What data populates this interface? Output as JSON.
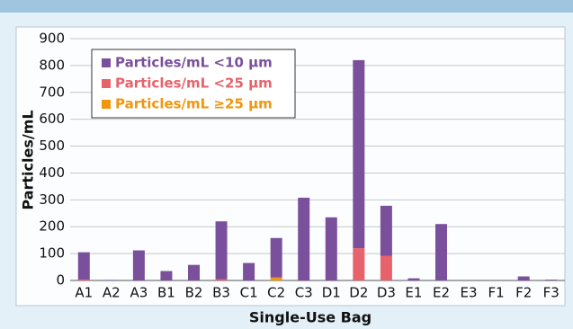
{
  "chart_data": {
    "type": "stacked-bar",
    "xlabel": "Single-Use Bag",
    "ylabel": "Particles/mL",
    "categories": [
      "A1",
      "A2",
      "A3",
      "B1",
      "B2",
      "B3",
      "C1",
      "C2",
      "C3",
      "D1",
      "D2",
      "D3",
      "E1",
      "E2",
      "E3",
      "F1",
      "F2",
      "F3"
    ],
    "series": [
      {
        "name": "Particles/mL <10 µm",
        "color": "#7a4f9c",
        "values": [
          102,
          2,
          112,
          35,
          58,
          215,
          65,
          146,
          308,
          235,
          700,
          186,
          8,
          210,
          0,
          0,
          15,
          3
        ]
      },
      {
        "name": "Particles/mL <25 µm",
        "color": "#e8626b",
        "values": [
          3,
          0,
          0,
          0,
          0,
          5,
          0,
          2,
          0,
          0,
          120,
          92,
          0,
          0,
          0,
          0,
          0,
          0
        ]
      },
      {
        "name": "Particles/mL ≥25 µm",
        "color": "#f0960f",
        "values": [
          0,
          0,
          0,
          0,
          0,
          0,
          0,
          10,
          0,
          0,
          0,
          0,
          0,
          0,
          0,
          0,
          0,
          0
        ]
      }
    ],
    "ylim": [
      0,
      900
    ],
    "yticks": [
      0,
      100,
      200,
      300,
      400,
      500,
      600,
      700,
      800,
      900
    ],
    "grid": true,
    "legend": "upper left"
  }
}
